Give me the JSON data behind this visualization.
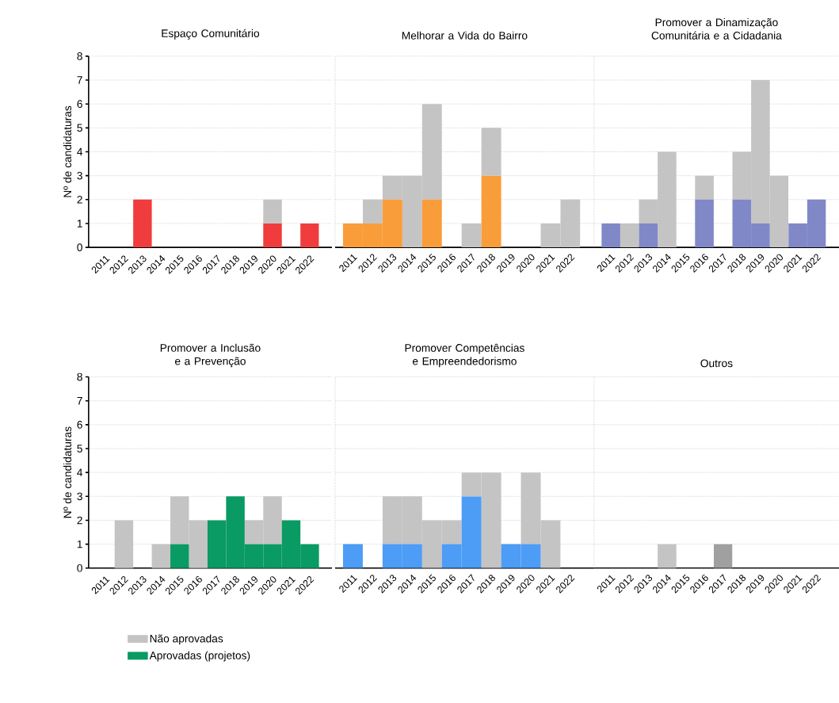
{
  "chart_data": [
    {
      "type": "bar",
      "stacked": true,
      "title": "Espaço Comunitário",
      "ylabel": "Nº de candidaturas",
      "categories": [
        "2011",
        "2012",
        "2013",
        "2014",
        "2015",
        "2016",
        "2017",
        "2018",
        "2019",
        "2020",
        "2021",
        "2022"
      ],
      "ylim": [
        0,
        8
      ],
      "yticks": [
        0,
        1,
        2,
        3,
        4,
        5,
        6,
        7,
        8
      ],
      "grid": "y",
      "series": [
        {
          "color": "#f03c3c",
          "values": [
            0,
            0,
            2,
            0,
            0,
            0,
            0,
            0,
            0,
            1,
            0,
            1
          ]
        },
        {
          "color": "#c4c4c4",
          "values": [
            0,
            0,
            0,
            0,
            0,
            0,
            0,
            0,
            0,
            1,
            0,
            0
          ]
        }
      ]
    },
    {
      "type": "bar",
      "stacked": true,
      "title": "Melhorar a Vida do Bairro",
      "categories": [
        "2011",
        "2012",
        "2013",
        "2014",
        "2015",
        "2016",
        "2017",
        "2018",
        "2019",
        "2020",
        "2021",
        "2022"
      ],
      "ylim": [
        0,
        8
      ],
      "yticks": [
        0,
        1,
        2,
        3,
        4,
        5,
        6,
        7,
        8
      ],
      "grid": "y",
      "tick_labels": "x",
      "series": [
        {
          "color": "#f99d3a",
          "values": [
            1,
            1,
            2,
            0,
            2,
            0,
            0,
            3,
            0,
            0,
            0,
            0
          ]
        },
        {
          "color": "#c4c4c4",
          "values": [
            0,
            1,
            1,
            3,
            4,
            0,
            1,
            2,
            0,
            0,
            1,
            2
          ]
        }
      ]
    },
    {
      "type": "bar",
      "stacked": true,
      "title": "Promover a Dinamização Comunitária e a Cidadania",
      "categories": [
        "2011",
        "2012",
        "2013",
        "2014",
        "2015",
        "2016",
        "2017",
        "2018",
        "2019",
        "2020",
        "2021",
        "2022"
      ],
      "ylim": [
        0,
        8
      ],
      "yticks": [
        0,
        1,
        2,
        3,
        4,
        5,
        6,
        7,
        8
      ],
      "grid": "y",
      "tick_labels": "x",
      "series": [
        {
          "color": "#8088c8",
          "values": [
            1,
            0,
            1,
            0,
            0,
            2,
            0,
            2,
            1,
            0,
            1,
            2
          ]
        },
        {
          "color": "#c4c4c4",
          "values": [
            0,
            1,
            1,
            4,
            0,
            1,
            0,
            2,
            6,
            3,
            0,
            0
          ]
        }
      ]
    },
    {
      "type": "bar",
      "stacked": true,
      "title": "Promover a Inclusão e a Prevenção",
      "ylabel": "Nº de candidaturas",
      "categories": [
        "2011",
        "2012",
        "2013",
        "2014",
        "2015",
        "2016",
        "2017",
        "2018",
        "2019",
        "2020",
        "2021",
        "2022"
      ],
      "ylim": [
        0,
        8
      ],
      "yticks": [
        0,
        1,
        2,
        3,
        4,
        5,
        6,
        7,
        8
      ],
      "grid": "y",
      "legend": "bottom",
      "series": [
        {
          "name": "Aprovadas (projetos)",
          "color": "#0a9a64",
          "values": [
            0,
            0,
            0,
            0,
            1,
            0,
            2,
            3,
            1,
            1,
            2,
            1
          ]
        },
        {
          "name": "Não aprovadas",
          "color": "#c4c4c4",
          "values": [
            0,
            2,
            0,
            1,
            2,
            2,
            0,
            0,
            1,
            2,
            0,
            0
          ]
        }
      ]
    },
    {
      "type": "bar",
      "stacked": true,
      "title": "Promover Competências e Empreendedorismo",
      "categories": [
        "2011",
        "2012",
        "2013",
        "2014",
        "2015",
        "2016",
        "2017",
        "2018",
        "2019",
        "2020",
        "2021",
        "2022"
      ],
      "ylim": [
        0,
        8
      ],
      "yticks": [
        0,
        1,
        2,
        3,
        4,
        5,
        6,
        7,
        8
      ],
      "grid": "y",
      "tick_labels": "x",
      "series": [
        {
          "color": "#4d9cf5",
          "values": [
            1,
            0,
            1,
            1,
            0,
            1,
            3,
            0,
            1,
            1,
            0,
            0
          ]
        },
        {
          "color": "#c4c4c4",
          "values": [
            0,
            0,
            2,
            2,
            2,
            1,
            1,
            4,
            0,
            3,
            2,
            0
          ]
        }
      ]
    },
    {
      "type": "bar",
      "stacked": true,
      "title": "Outros",
      "categories": [
        "2011",
        "2012",
        "2013",
        "2014",
        "2015",
        "2016",
        "2017",
        "2018",
        "2019",
        "2020",
        "2021",
        "2022"
      ],
      "ylim": [
        0,
        8
      ],
      "yticks": [
        0,
        1,
        2,
        3,
        4,
        5,
        6,
        7,
        8
      ],
      "grid": "y",
      "tick_labels": "x",
      "series": [
        {
          "color": "#a0a0a0",
          "values": [
            0,
            0,
            0,
            0,
            0,
            0,
            1,
            0,
            0,
            0,
            0,
            0
          ]
        },
        {
          "color": "#c4c4c4",
          "values": [
            0,
            0,
            0,
            1,
            0,
            0,
            0,
            0,
            0,
            0,
            0,
            0
          ]
        }
      ]
    }
  ]
}
